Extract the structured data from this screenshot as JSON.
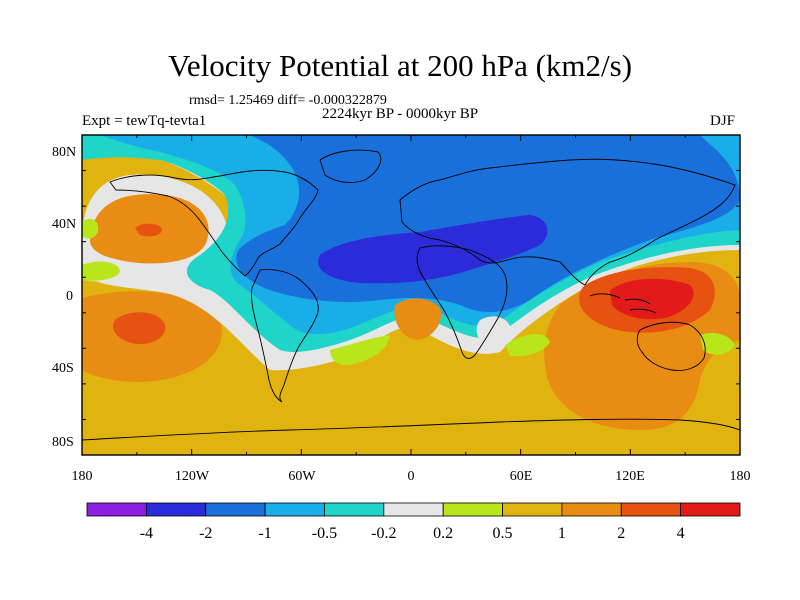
{
  "header": {
    "title": "Velocity Potential at 200 hPa (km2/s)",
    "stats": "rmsd= 1.25469 diff= -0.000322879",
    "period": "2224kyr BP - 0000kyr BP",
    "experiment": "Expt = tewTq-tevta1",
    "season": "DJF"
  },
  "map": {
    "projection": "cylindrical equidistant",
    "lat_ticks": [
      "80N",
      "40N",
      "0",
      "40S",
      "80S"
    ],
    "lon_ticks": [
      "180",
      "120W",
      "60W",
      "0",
      "60E",
      "120E",
      "180"
    ]
  },
  "colorbar": {
    "labels": [
      "-4",
      "-2",
      "-1",
      "-0.5",
      "-0.2",
      "0.2",
      "0.5",
      "1",
      "2",
      "4"
    ],
    "colors": [
      "#8a1fe0",
      "#2b2bd9",
      "#1a70db",
      "#1aaee8",
      "#1fd4c8",
      "#e6e6e6",
      "#b8e61a",
      "#e0b30f",
      "#e88c14",
      "#e6520f",
      "#e31a1a"
    ]
  }
}
